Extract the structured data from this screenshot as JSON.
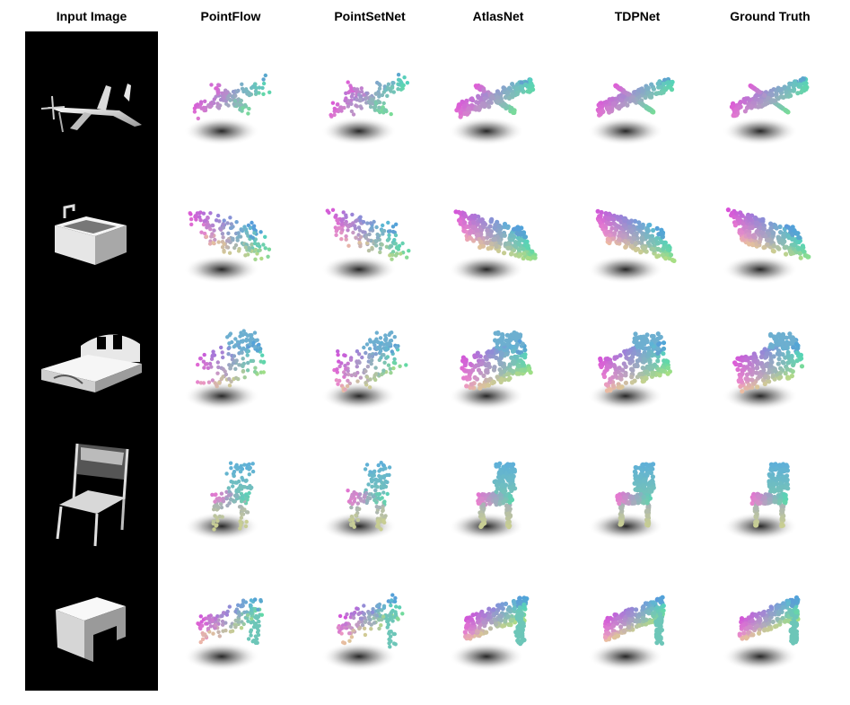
{
  "columns": [
    {
      "key": "input",
      "label": "Input Image"
    },
    {
      "key": "pointflow",
      "label": "PointFlow"
    },
    {
      "key": "pointsetnet",
      "label": "PointSetNet"
    },
    {
      "key": "atlasnet",
      "label": "AtlasNet"
    },
    {
      "key": "tdpnet",
      "label": "TDPNet"
    },
    {
      "key": "groundtruth",
      "label": "Ground Truth"
    }
  ],
  "rows": [
    {
      "object": "airplane"
    },
    {
      "object": "sink"
    },
    {
      "object": "bed"
    },
    {
      "object": "chair"
    },
    {
      "object": "desk"
    }
  ],
  "colors": {
    "background": "#ffffff",
    "input_panel": "#000000",
    "point_magenta": "#d94fd9",
    "point_pink": "#f0a0c8",
    "point_yellow": "#e8e070",
    "point_green": "#70e090",
    "point_cyan": "#40c8d8",
    "point_blue": "#6070e0"
  }
}
